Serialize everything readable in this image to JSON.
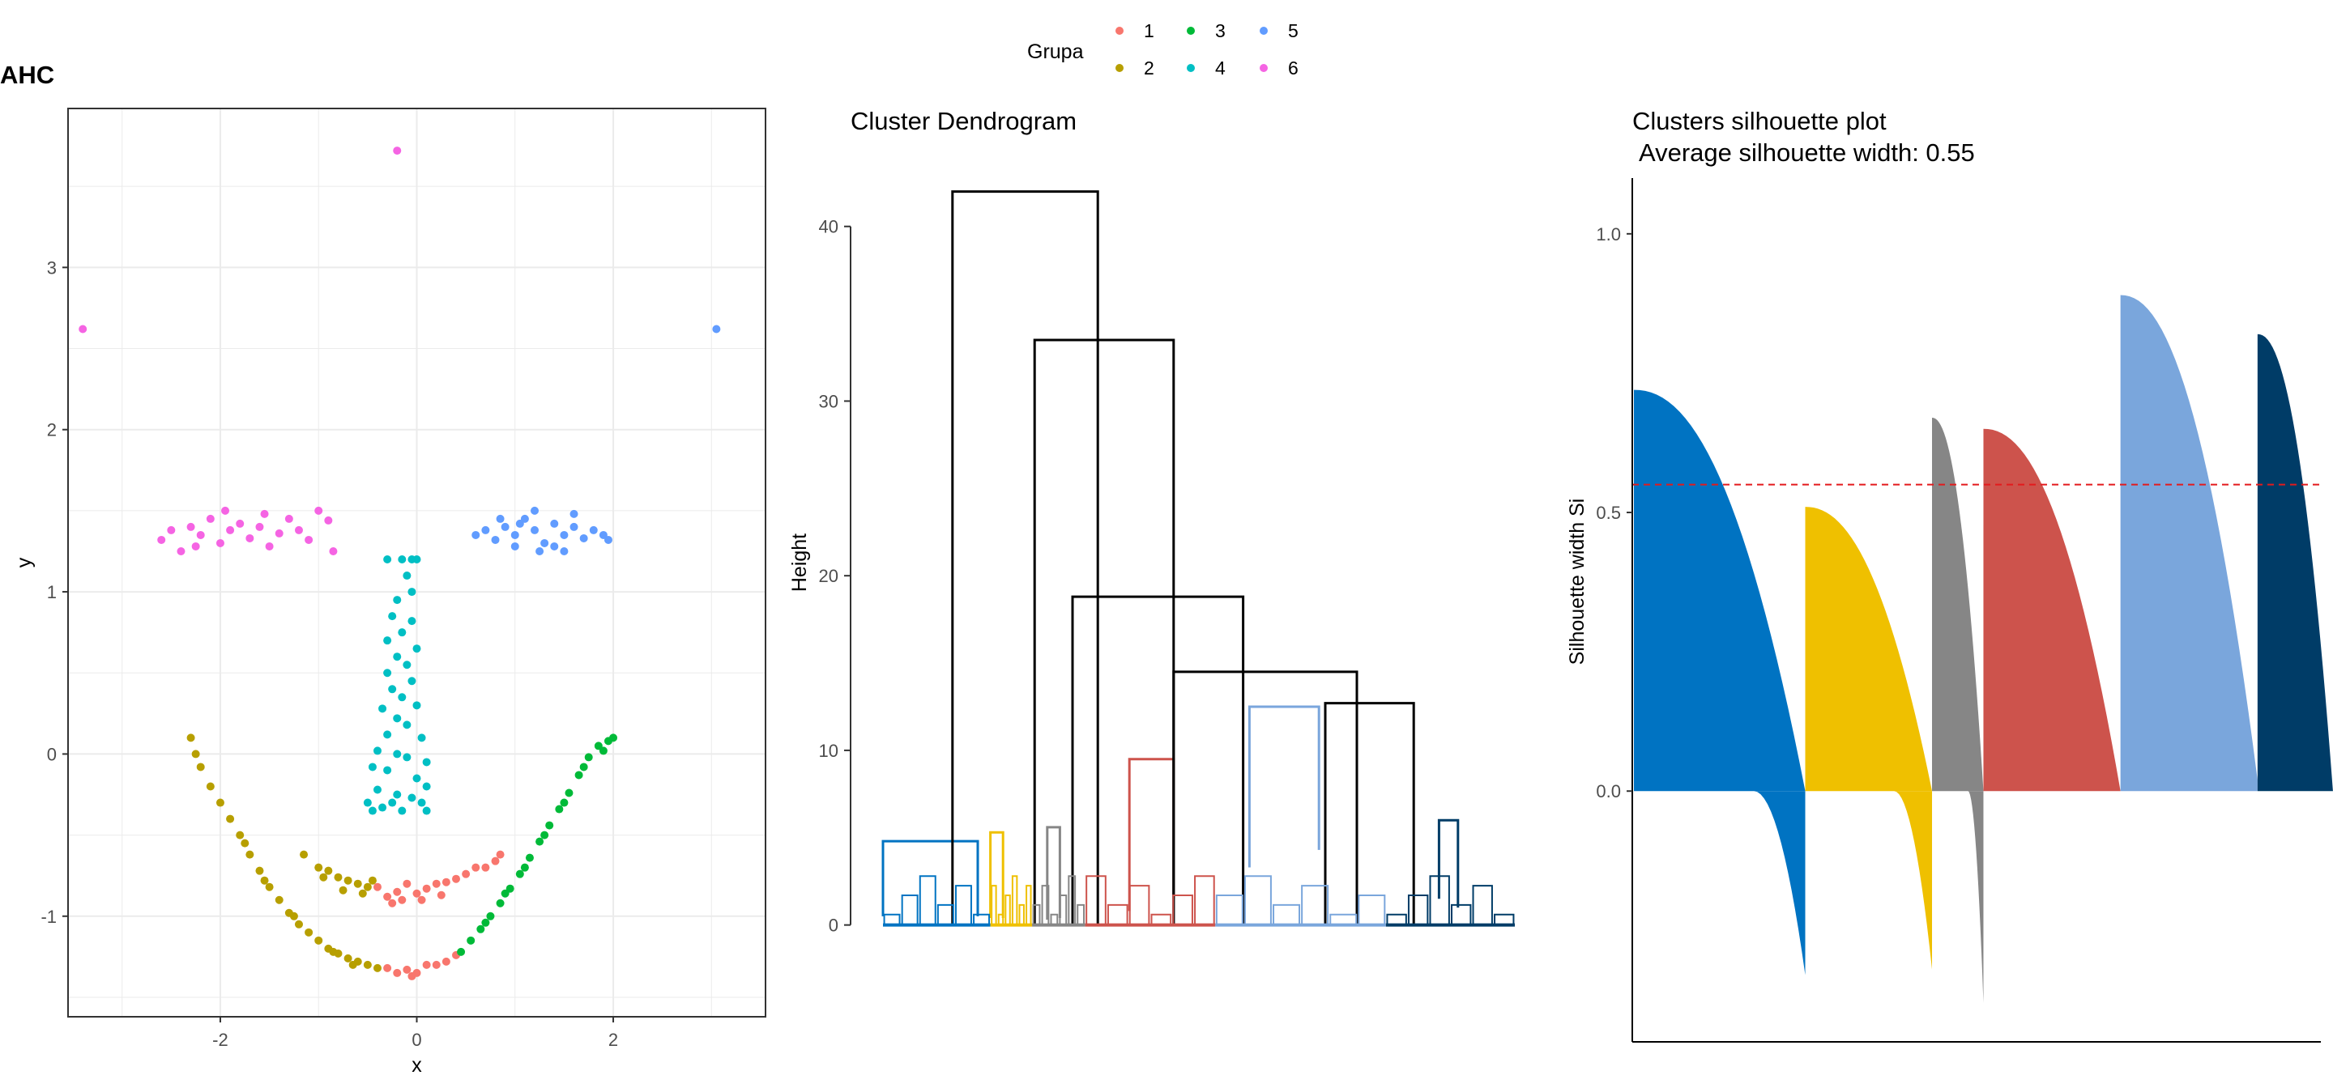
{
  "figure_title": "AHC",
  "legend": {
    "title": "Grupa",
    "items": [
      {
        "label": "1",
        "color": "#F8766D"
      },
      {
        "label": "2",
        "color": "#B79F00"
      },
      {
        "label": "3",
        "color": "#00BA38"
      },
      {
        "label": "4",
        "color": "#00BFC4"
      },
      {
        "label": "5",
        "color": "#619CFF"
      },
      {
        "label": "6",
        "color": "#F564E3"
      }
    ]
  },
  "chart_data": [
    {
      "type": "scatter",
      "title": "",
      "xlabel": "x",
      "ylabel": "y",
      "xlim": [
        -3.55,
        3.55
      ],
      "ylim": [
        -1.62,
        3.98
      ],
      "grid": true,
      "xticks": [
        -2,
        0,
        2
      ],
      "yticks": [
        -1,
        0,
        1,
        2,
        3
      ],
      "series": [
        {
          "group": "1",
          "color": "#F8766D",
          "points": [
            [
              -0.4,
              -0.82
            ],
            [
              -0.3,
              -0.88
            ],
            [
              -0.2,
              -0.85
            ],
            [
              -0.1,
              -0.8
            ],
            [
              0,
              -0.86
            ],
            [
              0.1,
              -0.83
            ],
            [
              0.2,
              -0.8
            ],
            [
              0.3,
              -0.79
            ],
            [
              0.4,
              -0.77
            ],
            [
              0.5,
              -0.74
            ],
            [
              0.6,
              -0.7
            ],
            [
              0.7,
              -0.7
            ],
            [
              0.8,
              -0.66
            ],
            [
              0.85,
              -0.62
            ],
            [
              -0.15,
              -0.9
            ],
            [
              0.05,
              -0.9
            ],
            [
              0.25,
              -0.87
            ],
            [
              -0.25,
              -0.92
            ],
            [
              -0.3,
              -1.32
            ],
            [
              -0.2,
              -1.35
            ],
            [
              -0.1,
              -1.33
            ],
            [
              0,
              -1.35
            ],
            [
              0.1,
              -1.3
            ],
            [
              0.2,
              -1.3
            ],
            [
              0.3,
              -1.28
            ],
            [
              0.4,
              -1.24
            ],
            [
              -0.05,
              -1.37
            ]
          ]
        },
        {
          "group": "2",
          "color": "#B79F00",
          "points": [
            [
              -2.3,
              0.1
            ],
            [
              -2.25,
              0.0
            ],
            [
              -2.2,
              -0.08
            ],
            [
              -2.1,
              -0.2
            ],
            [
              -2.0,
              -0.3
            ],
            [
              -1.9,
              -0.4
            ],
            [
              -1.8,
              -0.5
            ],
            [
              -1.7,
              -0.62
            ],
            [
              -1.6,
              -0.72
            ],
            [
              -1.5,
              -0.82
            ],
            [
              -1.4,
              -0.9
            ],
            [
              -1.3,
              -0.98
            ],
            [
              -1.2,
              -1.05
            ],
            [
              -1.1,
              -1.1
            ],
            [
              -1.0,
              -1.15
            ],
            [
              -0.9,
              -1.2
            ],
            [
              -0.8,
              -1.23
            ],
            [
              -0.7,
              -1.26
            ],
            [
              -0.6,
              -1.28
            ],
            [
              -0.5,
              -1.3
            ],
            [
              -0.4,
              -1.32
            ],
            [
              -1.15,
              -0.62
            ],
            [
              -1.0,
              -0.7
            ],
            [
              -0.9,
              -0.72
            ],
            [
              -0.8,
              -0.76
            ],
            [
              -0.7,
              -0.78
            ],
            [
              -0.6,
              -0.8
            ],
            [
              -0.5,
              -0.82
            ],
            [
              -0.45,
              -0.78
            ],
            [
              -0.55,
              -0.86
            ],
            [
              -0.75,
              -0.84
            ],
            [
              -0.95,
              -0.76
            ],
            [
              -1.75,
              -0.55
            ],
            [
              -1.55,
              -0.78
            ],
            [
              -1.25,
              -1.0
            ],
            [
              -0.85,
              -1.22
            ],
            [
              -0.65,
              -1.3
            ]
          ]
        },
        {
          "group": "3",
          "color": "#00BA38",
          "points": [
            [
              0.45,
              -1.22
            ],
            [
              0.55,
              -1.15
            ],
            [
              0.65,
              -1.08
            ],
            [
              0.75,
              -1.0
            ],
            [
              0.85,
              -0.92
            ],
            [
              0.95,
              -0.83
            ],
            [
              1.05,
              -0.74
            ],
            [
              1.15,
              -0.64
            ],
            [
              1.25,
              -0.54
            ],
            [
              1.35,
              -0.44
            ],
            [
              1.45,
              -0.34
            ],
            [
              1.55,
              -0.24
            ],
            [
              1.65,
              -0.13
            ],
            [
              1.75,
              -0.02
            ],
            [
              1.85,
              0.05
            ],
            [
              1.95,
              0.08
            ],
            [
              2.0,
              0.1
            ],
            [
              0.7,
              -1.04
            ],
            [
              0.9,
              -0.86
            ],
            [
              1.1,
              -0.7
            ],
            [
              1.3,
              -0.5
            ],
            [
              1.5,
              -0.3
            ],
            [
              1.7,
              -0.08
            ],
            [
              1.9,
              0.02
            ]
          ]
        },
        {
          "group": "4",
          "color": "#00BFC4",
          "points": [
            [
              -0.15,
              1.2
            ],
            [
              -0.05,
              1.2
            ],
            [
              0,
              1.2
            ],
            [
              -0.3,
              1.2
            ],
            [
              -0.1,
              1.1
            ],
            [
              -0.05,
              1.0
            ],
            [
              -0.2,
              0.95
            ],
            [
              -0.25,
              0.85
            ],
            [
              -0.05,
              0.82
            ],
            [
              -0.15,
              0.75
            ],
            [
              -0.3,
              0.7
            ],
            [
              0,
              0.65
            ],
            [
              -0.2,
              0.6
            ],
            [
              -0.1,
              0.55
            ],
            [
              -0.3,
              0.5
            ],
            [
              -0.05,
              0.45
            ],
            [
              -0.25,
              0.4
            ],
            [
              -0.15,
              0.35
            ],
            [
              0,
              0.3
            ],
            [
              -0.35,
              0.28
            ],
            [
              -0.2,
              0.22
            ],
            [
              -0.1,
              0.18
            ],
            [
              -0.3,
              0.12
            ],
            [
              0.05,
              0.1
            ],
            [
              -0.4,
              0.02
            ],
            [
              -0.2,
              0.0
            ],
            [
              -0.1,
              -0.02
            ],
            [
              0.1,
              -0.05
            ],
            [
              -0.45,
              -0.08
            ],
            [
              -0.3,
              -0.1
            ],
            [
              0,
              -0.15
            ],
            [
              0.1,
              -0.2
            ],
            [
              -0.4,
              -0.22
            ],
            [
              -0.2,
              -0.25
            ],
            [
              -0.05,
              -0.27
            ],
            [
              0.05,
              -0.3
            ],
            [
              -0.5,
              -0.3
            ],
            [
              -0.35,
              -0.33
            ],
            [
              -0.15,
              -0.35
            ],
            [
              0.1,
              -0.35
            ],
            [
              -0.25,
              -0.3
            ],
            [
              -0.45,
              -0.35
            ]
          ]
        },
        {
          "group": "5",
          "color": "#619CFF",
          "points": [
            [
              3.05,
              2.62
            ],
            [
              0.6,
              1.35
            ],
            [
              0.7,
              1.38
            ],
            [
              0.8,
              1.32
            ],
            [
              0.9,
              1.4
            ],
            [
              1.0,
              1.35
            ],
            [
              1.1,
              1.45
            ],
            [
              1.2,
              1.38
            ],
            [
              1.3,
              1.3
            ],
            [
              1.4,
              1.42
            ],
            [
              1.5,
              1.35
            ],
            [
              1.6,
              1.4
            ],
            [
              1.7,
              1.33
            ],
            [
              1.8,
              1.38
            ],
            [
              1.9,
              1.35
            ],
            [
              1.95,
              1.32
            ],
            [
              1.0,
              1.28
            ],
            [
              1.2,
              1.5
            ],
            [
              1.4,
              1.28
            ],
            [
              1.6,
              1.48
            ],
            [
              0.85,
              1.45
            ],
            [
              1.5,
              1.25
            ],
            [
              1.25,
              1.25
            ],
            [
              1.05,
              1.42
            ]
          ]
        },
        {
          "group": "6",
          "color": "#F564E3",
          "points": [
            [
              -0.2,
              3.72
            ],
            [
              -3.4,
              2.62
            ],
            [
              -2.6,
              1.32
            ],
            [
              -2.5,
              1.38
            ],
            [
              -2.4,
              1.25
            ],
            [
              -2.3,
              1.4
            ],
            [
              -2.2,
              1.35
            ],
            [
              -2.1,
              1.45
            ],
            [
              -2.0,
              1.3
            ],
            [
              -1.9,
              1.38
            ],
            [
              -1.8,
              1.42
            ],
            [
              -1.7,
              1.33
            ],
            [
              -1.6,
              1.4
            ],
            [
              -1.5,
              1.28
            ],
            [
              -1.4,
              1.36
            ],
            [
              -1.3,
              1.45
            ],
            [
              -1.2,
              1.38
            ],
            [
              -1.1,
              1.32
            ],
            [
              -1.0,
              1.5
            ],
            [
              -0.9,
              1.44
            ],
            [
              -0.85,
              1.25
            ],
            [
              -1.95,
              1.5
            ],
            [
              -1.55,
              1.48
            ],
            [
              -2.25,
              1.28
            ]
          ]
        }
      ]
    },
    {
      "type": "dendrogram",
      "title": "Cluster Dendrogram",
      "xlabel": "",
      "ylabel": "Height",
      "ylim": [
        -1.5,
        43
      ],
      "yticks": [
        0,
        10,
        20,
        30,
        40
      ],
      "merges": [
        {
          "group": "blue",
          "color": "#0073C2",
          "height": 4.8,
          "left": [
            0,
            0.5
          ],
          "right": [
            0.75,
            0.5
          ]
        },
        {
          "group": "yellow",
          "color": "#EFC000",
          "height": 5.3,
          "left": [
            0.85,
            0.4
          ],
          "right": [
            0.95,
            0.4
          ]
        },
        {
          "group": "grey",
          "color": "#868686",
          "height": 5.6,
          "left": [
            1.3,
            0.3
          ],
          "right": [
            1.4,
            0.4
          ]
        },
        {
          "group": "red",
          "color": "#CD534C",
          "height": 9.5,
          "left": [
            1.95,
            0.8
          ],
          "right": [
            2.3,
            1.5
          ]
        },
        {
          "group": "lightblue",
          "color": "#7AA6DC",
          "height": 12.5,
          "left": [
            2.9,
            3.3
          ],
          "right": [
            3.45,
            4.3
          ]
        },
        {
          "group": "navy",
          "color": "#003C67",
          "height": 6.0,
          "left": [
            4.4,
            1.5
          ],
          "right": [
            4.55,
            1.0
          ]
        },
        {
          "group": "top",
          "color": "#000000",
          "height": 42.0,
          "left": [
            0.55,
            0
          ],
          "right": [
            1.7,
            0
          ]
        },
        {
          "group": "top",
          "color": "#000000",
          "height": 33.5,
          "left": [
            1.2,
            0
          ],
          "right": [
            2.3,
            0
          ]
        },
        {
          "group": "top",
          "color": "#000000",
          "height": 18.8,
          "left": [
            1.5,
            0
          ],
          "right": [
            2.85,
            0
          ]
        },
        {
          "group": "top",
          "color": "#000000",
          "height": 14.5,
          "left": [
            2.3,
            0
          ],
          "right": [
            3.75,
            0
          ]
        },
        {
          "group": "top",
          "color": "#000000",
          "height": 12.7,
          "left": [
            3.5,
            0
          ],
          "right": [
            4.2,
            0
          ]
        }
      ]
    },
    {
      "type": "bar",
      "title": "Clusters silhouette plot",
      "subtitle": "Average silhouette width: 0.55",
      "xlabel": "",
      "ylabel": "Silhouette width Si",
      "ylim": [
        -0.45,
        1.1
      ],
      "yticks": [
        0.0,
        0.5,
        1.0
      ],
      "average": 0.55,
      "clusters": [
        {
          "cluster": "1",
          "color": "#0073C2",
          "share": 0.25,
          "max": 0.72,
          "min": -0.33
        },
        {
          "cluster": "2",
          "color": "#EFC000",
          "share": 0.185,
          "max": 0.51,
          "min": -0.32
        },
        {
          "cluster": "3",
          "color": "#868686",
          "share": 0.075,
          "max": 0.67,
          "min": -0.38
        },
        {
          "cluster": "4",
          "color": "#CD534C",
          "share": 0.2,
          "max": 0.65,
          "min": 0.0
        },
        {
          "cluster": "5",
          "color": "#7AA6DC",
          "share": 0.2,
          "max": 0.89,
          "min": 0.02
        },
        {
          "cluster": "6",
          "color": "#003C67",
          "share": 0.11,
          "max": 0.82,
          "min": 0.0
        }
      ]
    }
  ]
}
